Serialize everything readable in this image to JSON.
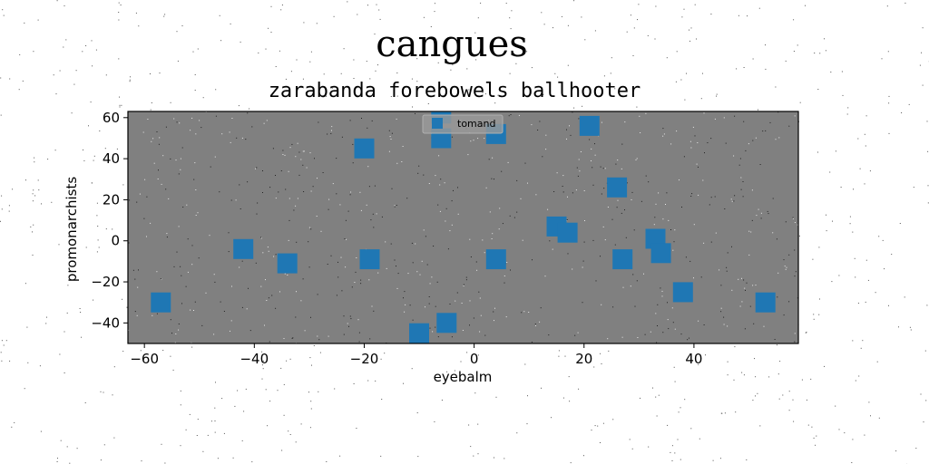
{
  "chart_data": {
    "type": "scatter",
    "suptitle": "cangues",
    "title": "zarabanda forebowels ballhooter",
    "xlabel": "eyebalm",
    "ylabel": "promonarchists",
    "xlim": [
      -63,
      59
    ],
    "ylim": [
      -50,
      63
    ],
    "xticks": [
      -60,
      -40,
      -20,
      0,
      20,
      40
    ],
    "yticks": [
      -40,
      -20,
      0,
      20,
      40,
      60
    ],
    "xtick_labels": [
      "−60",
      "−40",
      "−20",
      "0",
      "20",
      "40"
    ],
    "ytick_labels": [
      "−40",
      "−20",
      "0",
      "20",
      "40",
      "60"
    ],
    "grid": false,
    "legend_position": "upper center",
    "plot_background": "#808080",
    "series": [
      {
        "name": "tomand",
        "color": "#1f77b4",
        "marker": "square",
        "x": [
          -57,
          -42,
          -34,
          -20,
          -19,
          -10,
          -5,
          -6,
          -6,
          4,
          4,
          15,
          17,
          21,
          26,
          27,
          33,
          34,
          38,
          53
        ],
        "y": [
          -30,
          -4,
          -11,
          45,
          -9,
          -45,
          -40,
          62,
          50,
          52,
          -9,
          7,
          4,
          56,
          26,
          -9,
          1,
          -6,
          -25,
          -30
        ]
      }
    ]
  }
}
